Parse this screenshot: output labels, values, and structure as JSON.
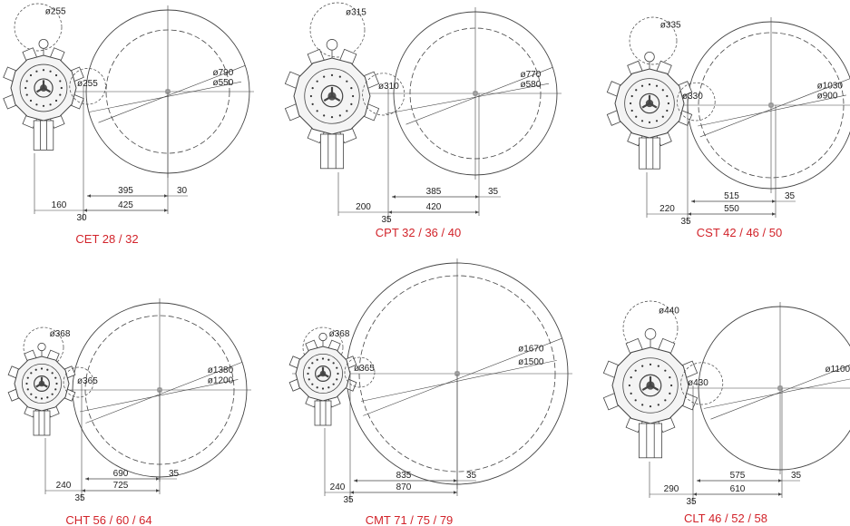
{
  "colors": {
    "caption": "#d2232a",
    "line": "#444444"
  },
  "diagrams": [
    {
      "caption": "CET 28 / 32",
      "diameters": {
        "outer": "ø790",
        "inner": "ø550",
        "top": "ø255",
        "side": "ø255"
      },
      "dims": {
        "left": "160",
        "below": "30",
        "mid_upper": "395",
        "mid_lower": "425",
        "right": "30"
      }
    },
    {
      "caption": "CPT 32 / 36 / 40",
      "diameters": {
        "outer": "ø770",
        "inner": "ø580",
        "top": "ø315",
        "side": "ø310"
      },
      "dims": {
        "left": "200",
        "below": "35",
        "mid_upper": "385",
        "mid_lower": "420",
        "right": "35"
      }
    },
    {
      "caption": "CST 42 / 46 / 50",
      "diameters": {
        "outer": "ø1030",
        "inner": "ø900",
        "top": "ø335",
        "side": "ø330"
      },
      "dims": {
        "left": "220",
        "below": "35",
        "mid_upper": "515",
        "mid_lower": "550",
        "right": "35"
      }
    },
    {
      "caption": "CHT 56 / 60 / 64",
      "diameters": {
        "outer": "ø1380",
        "inner": "ø1200",
        "top": "ø368",
        "side": "ø365"
      },
      "dims": {
        "left": "240",
        "below": "35",
        "mid_upper": "690",
        "mid_lower": "725",
        "right": "35"
      }
    },
    {
      "caption": "CMT 71 / 75 / 79",
      "diameters": {
        "outer": "ø1670",
        "inner": "ø1500",
        "top": "ø368",
        "side": "ø365"
      },
      "dims": {
        "left": "240",
        "below": "35",
        "mid_upper": "835",
        "mid_lower": "870",
        "right": "35"
      }
    },
    {
      "caption": "CLT 46 / 52 / 58",
      "diameters": {
        "outer": "ø1100",
        "top": "ø440",
        "side": "ø430"
      },
      "dims": {
        "left": "290",
        "below": "35",
        "mid_upper": "575",
        "mid_lower": "610",
        "right": "35"
      }
    }
  ]
}
